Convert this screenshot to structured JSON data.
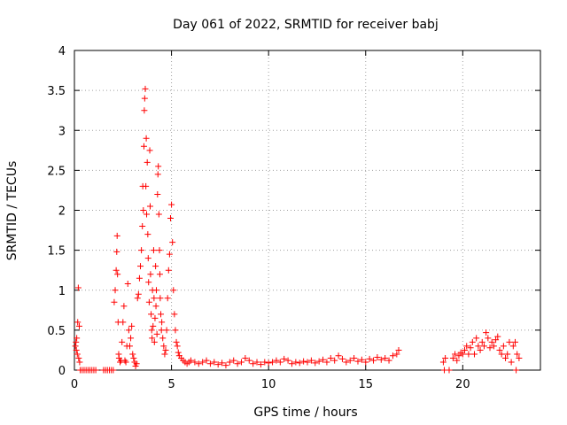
{
  "chart_data": {
    "type": "scatter",
    "title": "Day 061 of 2022, SRMTID for receiver babj",
    "xlabel": "GPS time / hours",
    "ylabel": "SRMTID / TECUs",
    "xlim": [
      0,
      24
    ],
    "ylim": [
      0,
      4
    ],
    "xticks": [
      0,
      5,
      10,
      15,
      20
    ],
    "xtick_labels": [
      "0",
      "5",
      "10",
      "15",
      "20"
    ],
    "yticks": [
      0,
      0.5,
      1,
      1.5,
      2,
      2.5,
      3,
      3.5,
      4
    ],
    "ytick_labels": [
      "0",
      "0.5",
      "1",
      "1.5",
      "2",
      "2.5",
      "3",
      "3.5",
      "4"
    ],
    "grid": true,
    "marker": "+",
    "color": "#ff0000",
    "series": [
      {
        "name": "SRMTID",
        "points": [
          [
            0.05,
            0.3
          ],
          [
            0.08,
            0.35
          ],
          [
            0.1,
            0.25
          ],
          [
            0.12,
            0.4
          ],
          [
            0.15,
            0.2
          ],
          [
            0.17,
            0.6
          ],
          [
            0.2,
            1.03
          ],
          [
            0.22,
            0.15
          ],
          [
            0.25,
            0.55
          ],
          [
            0.27,
            0.1
          ],
          [
            0.3,
            0.0
          ],
          [
            0.4,
            0.0
          ],
          [
            0.5,
            0.0
          ],
          [
            0.6,
            0.0
          ],
          [
            0.7,
            0.0
          ],
          [
            0.8,
            0.0
          ],
          [
            0.9,
            0.0
          ],
          [
            1.0,
            0.0
          ],
          [
            1.1,
            0.0
          ],
          [
            1.5,
            0.0
          ],
          [
            1.6,
            0.0
          ],
          [
            1.7,
            0.0
          ],
          [
            1.8,
            0.0
          ],
          [
            1.9,
            0.0
          ],
          [
            2.0,
            0.0
          ],
          [
            2.05,
            0.85
          ],
          [
            2.1,
            1.0
          ],
          [
            2.15,
            1.25
          ],
          [
            2.18,
            1.48
          ],
          [
            2.2,
            1.68
          ],
          [
            2.22,
            1.2
          ],
          [
            2.25,
            0.6
          ],
          [
            2.28,
            0.2
          ],
          [
            2.3,
            0.15
          ],
          [
            2.35,
            0.1
          ],
          [
            2.4,
            0.12
          ],
          [
            2.45,
            0.35
          ],
          [
            2.5,
            0.6
          ],
          [
            2.55,
            0.8
          ],
          [
            2.6,
            0.12
          ],
          [
            2.65,
            0.1
          ],
          [
            2.7,
            0.3
          ],
          [
            2.75,
            1.08
          ],
          [
            2.8,
            0.5
          ],
          [
            2.85,
            0.3
          ],
          [
            2.9,
            0.4
          ],
          [
            2.95,
            0.55
          ],
          [
            3.0,
            0.2
          ],
          [
            3.05,
            0.15
          ],
          [
            3.1,
            0.1
          ],
          [
            3.15,
            0.05
          ],
          [
            3.2,
            0.08
          ],
          [
            3.25,
            0.9
          ],
          [
            3.3,
            0.95
          ],
          [
            3.35,
            1.15
          ],
          [
            3.4,
            1.3
          ],
          [
            3.45,
            1.5
          ],
          [
            3.5,
            1.8
          ],
          [
            3.52,
            2.3
          ],
          [
            3.55,
            2.0
          ],
          [
            3.58,
            2.8
          ],
          [
            3.6,
            3.25
          ],
          [
            3.62,
            3.4
          ],
          [
            3.65,
            3.52
          ],
          [
            3.68,
            2.3
          ],
          [
            3.7,
            2.9
          ],
          [
            3.72,
            1.95
          ],
          [
            3.75,
            2.6
          ],
          [
            3.78,
            1.7
          ],
          [
            3.8,
            1.4
          ],
          [
            3.82,
            1.1
          ],
          [
            3.85,
            0.85
          ],
          [
            3.88,
            2.75
          ],
          [
            3.9,
            2.05
          ],
          [
            3.92,
            1.2
          ],
          [
            3.95,
            0.7
          ],
          [
            3.98,
            0.5
          ],
          [
            4.0,
            0.4
          ],
          [
            4.02,
            1.0
          ],
          [
            4.05,
            0.55
          ],
          [
            4.08,
            1.5
          ],
          [
            4.1,
            0.9
          ],
          [
            4.12,
            0.35
          ],
          [
            4.15,
            0.65
          ],
          [
            4.18,
            1.3
          ],
          [
            4.2,
            0.8
          ],
          [
            4.22,
            1.0
          ],
          [
            4.25,
            0.45
          ],
          [
            4.28,
            2.2
          ],
          [
            4.3,
            2.45
          ],
          [
            4.32,
            2.55
          ],
          [
            4.35,
            1.95
          ],
          [
            4.38,
            1.5
          ],
          [
            4.4,
            1.2
          ],
          [
            4.42,
            0.9
          ],
          [
            4.45,
            0.7
          ],
          [
            4.48,
            0.5
          ],
          [
            4.5,
            0.6
          ],
          [
            4.55,
            0.4
          ],
          [
            4.6,
            0.3
          ],
          [
            4.65,
            0.2
          ],
          [
            4.7,
            0.25
          ],
          [
            4.75,
            0.5
          ],
          [
            4.8,
            0.9
          ],
          [
            4.85,
            1.25
          ],
          [
            4.9,
            1.45
          ],
          [
            4.95,
            1.9
          ],
          [
            5.0,
            2.07
          ],
          [
            5.05,
            1.6
          ],
          [
            5.1,
            1.0
          ],
          [
            5.15,
            0.7
          ],
          [
            5.2,
            0.5
          ],
          [
            5.25,
            0.35
          ],
          [
            5.3,
            0.3
          ],
          [
            5.35,
            0.22
          ],
          [
            5.4,
            0.18
          ],
          [
            5.5,
            0.15
          ],
          [
            5.6,
            0.12
          ],
          [
            5.7,
            0.1
          ],
          [
            5.8,
            0.08
          ],
          [
            5.9,
            0.1
          ],
          [
            6.0,
            0.12
          ],
          [
            6.2,
            0.1
          ],
          [
            6.4,
            0.08
          ],
          [
            6.6,
            0.1
          ],
          [
            6.8,
            0.12
          ],
          [
            7.0,
            0.08
          ],
          [
            7.2,
            0.1
          ],
          [
            7.4,
            0.07
          ],
          [
            7.6,
            0.09
          ],
          [
            7.8,
            0.06
          ],
          [
            8.0,
            0.1
          ],
          [
            8.2,
            0.12
          ],
          [
            8.4,
            0.08
          ],
          [
            8.6,
            0.1
          ],
          [
            8.8,
            0.15
          ],
          [
            9.0,
            0.12
          ],
          [
            9.2,
            0.08
          ],
          [
            9.4,
            0.1
          ],
          [
            9.6,
            0.07
          ],
          [
            9.8,
            0.1
          ],
          [
            10.0,
            0.09
          ],
          [
            10.2,
            0.1
          ],
          [
            10.4,
            0.12
          ],
          [
            10.6,
            0.1
          ],
          [
            10.8,
            0.14
          ],
          [
            11.0,
            0.12
          ],
          [
            11.2,
            0.08
          ],
          [
            11.4,
            0.1
          ],
          [
            11.6,
            0.09
          ],
          [
            11.8,
            0.11
          ],
          [
            12.0,
            0.1
          ],
          [
            12.2,
            0.12
          ],
          [
            12.4,
            0.09
          ],
          [
            12.6,
            0.11
          ],
          [
            12.8,
            0.13
          ],
          [
            13.0,
            0.1
          ],
          [
            13.2,
            0.15
          ],
          [
            13.4,
            0.12
          ],
          [
            13.6,
            0.18
          ],
          [
            13.8,
            0.14
          ],
          [
            14.0,
            0.1
          ],
          [
            14.2,
            0.12
          ],
          [
            14.4,
            0.15
          ],
          [
            14.6,
            0.11
          ],
          [
            14.8,
            0.13
          ],
          [
            15.0,
            0.1
          ],
          [
            15.2,
            0.14
          ],
          [
            15.4,
            0.12
          ],
          [
            15.6,
            0.16
          ],
          [
            15.8,
            0.13
          ],
          [
            16.0,
            0.15
          ],
          [
            16.2,
            0.12
          ],
          [
            16.4,
            0.18
          ],
          [
            16.6,
            0.2
          ],
          [
            16.7,
            0.25
          ],
          [
            19.0,
            0.1
          ],
          [
            19.05,
            0.0
          ],
          [
            19.1,
            0.15
          ],
          [
            19.3,
            0.0
          ],
          [
            19.5,
            0.15
          ],
          [
            19.6,
            0.2
          ],
          [
            19.7,
            0.12
          ],
          [
            19.8,
            0.18
          ],
          [
            19.9,
            0.22
          ],
          [
            20.0,
            0.2
          ],
          [
            20.1,
            0.25
          ],
          [
            20.2,
            0.3
          ],
          [
            20.3,
            0.2
          ],
          [
            20.4,
            0.28
          ],
          [
            20.5,
            0.35
          ],
          [
            20.6,
            0.2
          ],
          [
            20.7,
            0.4
          ],
          [
            20.8,
            0.3
          ],
          [
            20.9,
            0.25
          ],
          [
            21.0,
            0.35
          ],
          [
            21.1,
            0.3
          ],
          [
            21.2,
            0.47
          ],
          [
            21.3,
            0.4
          ],
          [
            21.4,
            0.28
          ],
          [
            21.5,
            0.35
          ],
          [
            21.6,
            0.3
          ],
          [
            21.7,
            0.38
          ],
          [
            21.8,
            0.42
          ],
          [
            21.9,
            0.25
          ],
          [
            22.0,
            0.2
          ],
          [
            22.1,
            0.3
          ],
          [
            22.2,
            0.15
          ],
          [
            22.3,
            0.2
          ],
          [
            22.4,
            0.35
          ],
          [
            22.5,
            0.1
          ],
          [
            22.6,
            0.3
          ],
          [
            22.7,
            0.35
          ],
          [
            22.75,
            0.0
          ],
          [
            22.8,
            0.2
          ],
          [
            22.9,
            0.15
          ]
        ]
      }
    ]
  }
}
